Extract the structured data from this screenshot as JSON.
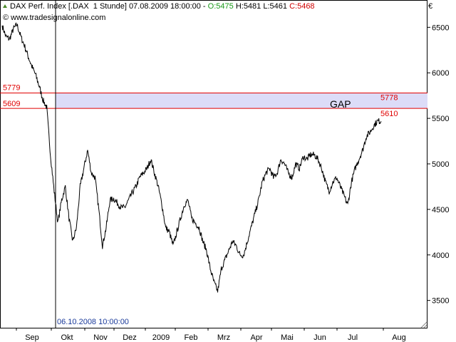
{
  "header": {
    "symbol": "DAX Perf. Index [.DAX",
    "interval": "1 Stunde]",
    "datetime": "07.08.2009 18:00:00",
    "open": "O:5475",
    "high": "H:5481",
    "low": "L:5461",
    "close": "C:5468",
    "source": "© www.tradesignalonline.com",
    "currency": "€"
  },
  "colors": {
    "price_line": "#000000",
    "gap_border": "#e00000",
    "gap_fill": "#dcdcf8",
    "gap_label_color": "#e00000",
    "open_color": "#1a9a1a",
    "close_color": "#d00000"
  },
  "chart_data": {
    "type": "line",
    "ylim": [
      3200,
      6800
    ],
    "y_ticks": [
      3500,
      4000,
      4500,
      5000,
      5500,
      6000,
      6500
    ],
    "x_labels": [
      "Sep",
      "Okt",
      "Nov",
      "Dez",
      "2009",
      "Feb",
      "Mrz",
      "Apr",
      "Mai",
      "Jun",
      "Jul",
      "Aug"
    ],
    "crosshair_label": "06.10.2008 10:00:00",
    "gap": {
      "label": "GAP",
      "upper": 5779,
      "lower": 5609,
      "left_upper_label": "5779",
      "left_lower_label": "5609",
      "right_upper_label": "5778",
      "right_lower_label": "5610"
    },
    "series": [
      {
        "values": [
          6520,
          6400,
          6370,
          6480,
          6530,
          6400,
          6300,
          6180,
          6070,
          5980,
          5850,
          5700,
          5620,
          5100,
          4700,
          4350,
          4600,
          4750,
          4400,
          4150,
          4300,
          4750,
          4950,
          5150,
          4900,
          4850,
          4500,
          4100,
          4300,
          4600,
          4620,
          4570,
          4520,
          4520,
          4600,
          4680,
          4750,
          4850,
          4900,
          4950,
          5050,
          4900,
          4750,
          4550,
          4300,
          4250,
          4100,
          4250,
          4400,
          4550,
          4600,
          4400,
          4350,
          4300,
          4150,
          4050,
          3850,
          3700,
          3600,
          3850,
          3950,
          4050,
          4150,
          4100,
          4000,
          4000,
          4150,
          4300,
          4450,
          4600,
          4800,
          4900,
          4950,
          4850,
          4900,
          5050,
          5000,
          4900,
          4850,
          5000,
          4950,
          5080,
          5050,
          5100,
          5100,
          5050,
          4950,
          4800,
          4700,
          4800,
          4850,
          4750,
          4650,
          4550,
          4800,
          4950,
          5050,
          5150,
          5300,
          5350,
          5420,
          5470,
          5468
        ]
      }
    ]
  }
}
